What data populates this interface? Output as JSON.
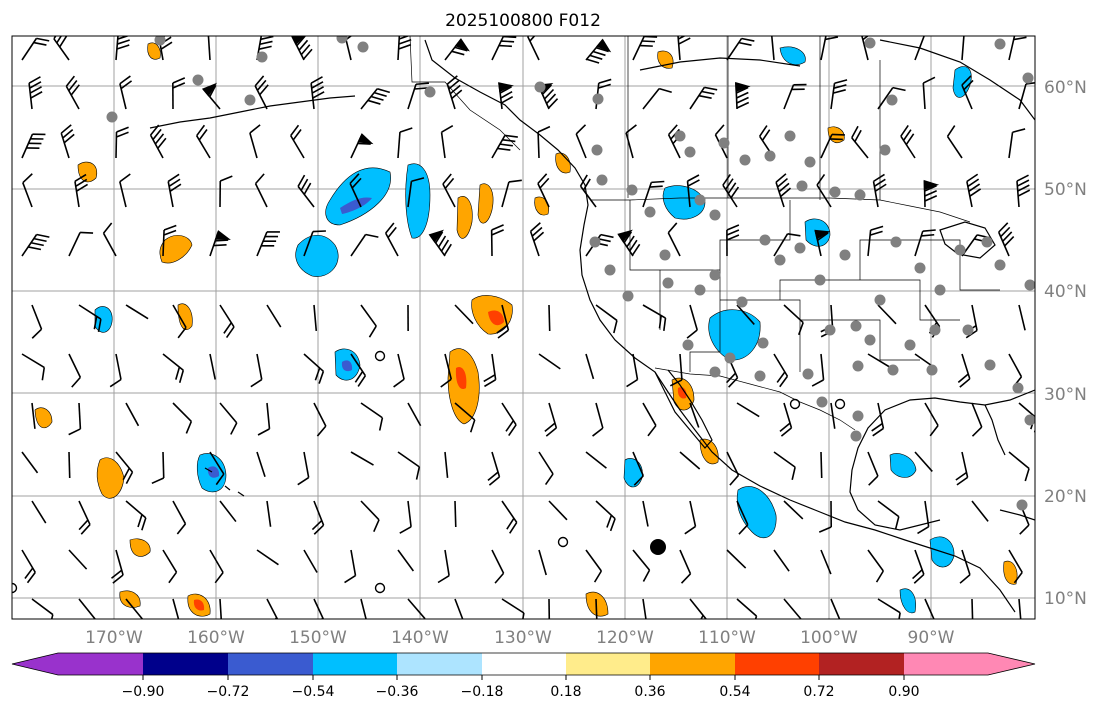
{
  "map": {
    "title": "2025100800 F012",
    "lat_labels": [
      "60°N",
      "50°N",
      "40°N",
      "30°N",
      "20°N",
      "10°N"
    ],
    "lon_labels": [
      "170°W",
      "160°W",
      "150°W",
      "140°W",
      "130°W",
      "120°W",
      "110°W",
      "100°W",
      "90°W"
    ],
    "colorbar": {
      "ticks": [
        "−0.90",
        "−0.72",
        "−0.54",
        "−0.36",
        "−0.18",
        "0.18",
        "0.36",
        "0.54",
        "0.72",
        "0.90"
      ],
      "colors": [
        "#9932cc",
        "#00008b",
        "#3a5bd0",
        "#00bfff",
        "#ade4ff",
        "#ffffff",
        "#ffec8b",
        "#ffa500",
        "#ff4000",
        "#b22222",
        "#ff88b4"
      ]
    }
  }
}
